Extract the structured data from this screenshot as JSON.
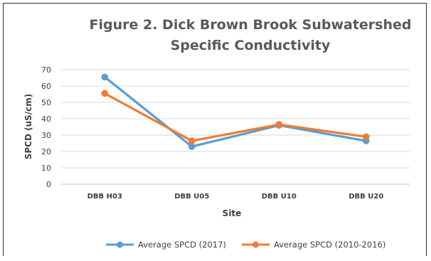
{
  "chart_data": {
    "type": "line",
    "title_lines": [
      "Figure 2. Dick Brown Brook Subwatershed",
      "Specific Conductivity"
    ],
    "xlabel": "Site",
    "ylabel": "SPCD (uS/cm)",
    "categories": [
      "DBB H03",
      "DBB U05",
      "DBB U10",
      "DBB U20"
    ],
    "ylim": [
      0,
      70
    ],
    "yticks": [
      0,
      10,
      20,
      30,
      40,
      50,
      60,
      70
    ],
    "grid": true,
    "legend": "bottom",
    "series": [
      {
        "name": "Average SPCD (2017)",
        "values": [
          65.5,
          23,
          36,
          26.5
        ],
        "color": "#5b9bd5"
      },
      {
        "name": "Average SPCD (2010-2016)",
        "values": [
          55.5,
          26.5,
          36.5,
          29
        ],
        "color": "#ed7d31"
      }
    ]
  }
}
